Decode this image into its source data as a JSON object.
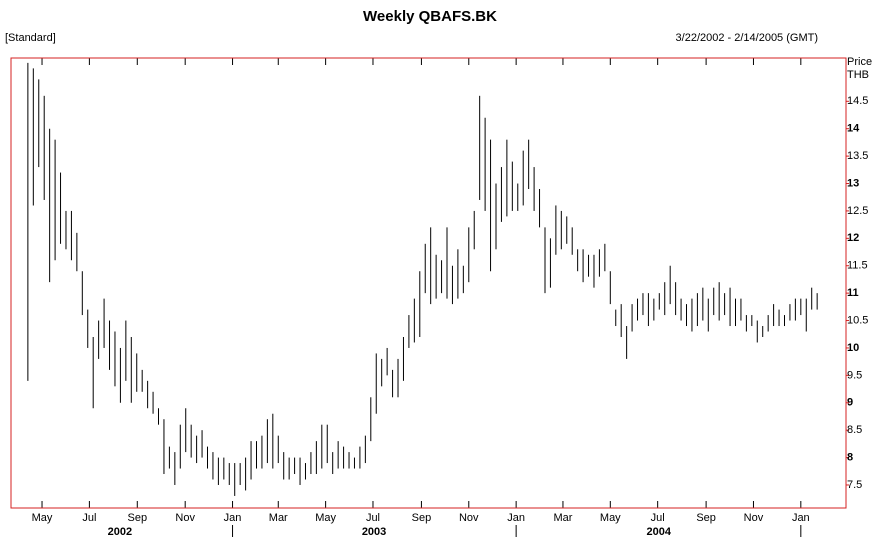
{
  "chart_data": {
    "type": "ohlc",
    "title": "Weekly QBAFS.BK",
    "subtitle": "[Standard]",
    "date_range": "3/22/2002 - 2/14/2005 (GMT)",
    "y_axis_label": "Price",
    "y_axis_unit": "THB",
    "color": "#000000",
    "frame_color": "#d42020",
    "xlim": [
      -0.1,
      153.3
    ],
    "ylim": [
      7.08,
      15.29
    ],
    "yticks": [
      7.5,
      8,
      8.5,
      9,
      9.5,
      10,
      10.5,
      11,
      11.5,
      12,
      12.5,
      13,
      13.5,
      14,
      14.5
    ],
    "xticks": [
      {
        "value": 5.6,
        "label": "May"
      },
      {
        "value": 14.3,
        "label": "Jul"
      },
      {
        "value": 23.1,
        "label": "Sep"
      },
      {
        "value": 31.9,
        "label": "Nov"
      },
      {
        "value": 40.6,
        "label": "Jan"
      },
      {
        "value": 49.0,
        "label": "Mar"
      },
      {
        "value": 57.7,
        "label": "May"
      },
      {
        "value": 66.4,
        "label": "Jul"
      },
      {
        "value": 75.3,
        "label": "Sep"
      },
      {
        "value": 84.0,
        "label": "Nov"
      },
      {
        "value": 92.7,
        "label": "Jan"
      },
      {
        "value": 101.3,
        "label": "Mar"
      },
      {
        "value": 110.0,
        "label": "May"
      },
      {
        "value": 118.7,
        "label": "Jul"
      },
      {
        "value": 127.6,
        "label": "Sep"
      },
      {
        "value": 136.3,
        "label": "Nov"
      },
      {
        "value": 145.0,
        "label": "Jan"
      }
    ],
    "year_labels": [
      {
        "value": 19.9,
        "label": "2002"
      },
      {
        "value": 66.6,
        "label": "2003"
      },
      {
        "value": 118.9,
        "label": "2004"
      }
    ],
    "year_ticks": [
      40.6,
      92.7,
      145.0
    ],
    "x": [
      3,
      4,
      5,
      6,
      7,
      8,
      9,
      10,
      11,
      12,
      13,
      14,
      15,
      16,
      17,
      18,
      19,
      20,
      21,
      22,
      23,
      24,
      25,
      26,
      27,
      28,
      29,
      30,
      31,
      32,
      33,
      34,
      35,
      36,
      37,
      38,
      39,
      40,
      41,
      42,
      43,
      44,
      45,
      46,
      47,
      48,
      49,
      50,
      51,
      52,
      53,
      54,
      55,
      56,
      57,
      58,
      59,
      60,
      61,
      62,
      63,
      64,
      65,
      66,
      67,
      68,
      69,
      70,
      71,
      72,
      73,
      74,
      75,
      76,
      77,
      78,
      79,
      80,
      81,
      82,
      83,
      84,
      85,
      86,
      87,
      88,
      89,
      90,
      91,
      92,
      93,
      94,
      95,
      96,
      97,
      98,
      99,
      100,
      101,
      102,
      103,
      104,
      105,
      106,
      107,
      108,
      109,
      110,
      111,
      112,
      113,
      114,
      115,
      116,
      117,
      118,
      119,
      120,
      121,
      122,
      123,
      124,
      125,
      126,
      127,
      128,
      129,
      130,
      131,
      132,
      133,
      134,
      135,
      136,
      137,
      138,
      139,
      140,
      141,
      142,
      143,
      144,
      145,
      146,
      147,
      148
    ],
    "high": [
      15.2,
      15.1,
      14.9,
      14.6,
      14.0,
      13.8,
      13.2,
      12.5,
      12.5,
      12.1,
      11.4,
      10.7,
      10.2,
      10.5,
      10.9,
      10.5,
      10.3,
      10.0,
      10.5,
      10.2,
      9.9,
      9.6,
      9.4,
      9.2,
      8.9,
      8.7,
      8.2,
      8.1,
      8.6,
      8.9,
      8.6,
      8.4,
      8.5,
      8.2,
      8.1,
      8.0,
      8.0,
      7.9,
      7.9,
      7.9,
      8.0,
      8.3,
      8.3,
      8.4,
      8.7,
      8.8,
      8.4,
      8.1,
      8.0,
      8.0,
      8.0,
      7.9,
      8.1,
      8.3,
      8.6,
      8.6,
      8.1,
      8.3,
      8.2,
      8.1,
      8.0,
      8.2,
      8.4,
      9.1,
      9.9,
      9.8,
      10.0,
      9.6,
      9.8,
      10.2,
      10.6,
      10.9,
      11.4,
      11.9,
      12.2,
      11.7,
      11.6,
      12.2,
      11.5,
      11.8,
      11.5,
      12.2,
      12.5,
      14.6,
      14.2,
      13.8,
      13.0,
      13.3,
      13.8,
      13.4,
      13.0,
      13.6,
      13.8,
      13.3,
      12.9,
      12.2,
      12.0,
      12.6,
      12.5,
      12.4,
      12.2,
      11.8,
      11.8,
      11.7,
      11.7,
      11.8,
      11.9,
      11.4,
      10.7,
      10.8,
      10.4,
      10.8,
      10.9,
      11.0,
      11.0,
      10.9,
      11.0,
      11.2,
      11.5,
      11.2,
      10.9,
      10.8,
      10.9,
      11.0,
      11.1,
      10.9,
      11.1,
      11.2,
      11.0,
      11.1,
      10.9,
      10.9,
      10.6,
      10.6,
      10.5,
      10.4,
      10.6,
      10.8,
      10.7,
      10.6,
      10.8,
      10.9,
      10.9,
      10.9,
      11.1,
      11.0
    ],
    "low": [
      9.4,
      12.6,
      13.3,
      12.7,
      11.2,
      11.6,
      11.9,
      11.8,
      11.6,
      11.4,
      10.6,
      10.0,
      8.9,
      9.8,
      10.0,
      9.6,
      9.3,
      9.0,
      9.4,
      9.0,
      9.2,
      9.2,
      8.9,
      8.8,
      8.6,
      7.7,
      7.8,
      7.5,
      7.8,
      8.1,
      8.0,
      7.9,
      8.0,
      7.8,
      7.6,
      7.5,
      7.6,
      7.5,
      7.3,
      7.5,
      7.4,
      7.6,
      7.8,
      7.8,
      7.9,
      7.8,
      7.9,
      7.6,
      7.6,
      7.7,
      7.5,
      7.6,
      7.7,
      7.7,
      7.8,
      7.9,
      7.7,
      7.8,
      7.8,
      7.8,
      7.8,
      7.8,
      7.9,
      8.3,
      8.8,
      9.3,
      9.5,
      9.1,
      9.1,
      9.4,
      10.0,
      10.1,
      10.2,
      11.0,
      10.8,
      10.9,
      11.0,
      10.9,
      10.8,
      10.9,
      11.0,
      11.2,
      11.8,
      12.7,
      12.5,
      11.4,
      11.8,
      12.3,
      12.4,
      12.5,
      12.5,
      12.6,
      12.9,
      12.5,
      12.2,
      11.0,
      11.1,
      11.7,
      11.8,
      11.9,
      11.7,
      11.4,
      11.2,
      11.3,
      11.1,
      11.3,
      11.4,
      10.8,
      10.4,
      10.2,
      9.8,
      10.3,
      10.5,
      10.6,
      10.4,
      10.5,
      10.7,
      10.6,
      10.8,
      10.6,
      10.5,
      10.4,
      10.3,
      10.4,
      10.5,
      10.3,
      10.6,
      10.5,
      10.6,
      10.4,
      10.4,
      10.5,
      10.3,
      10.4,
      10.1,
      10.2,
      10.3,
      10.4,
      10.4,
      10.4,
      10.5,
      10.5,
      10.6,
      10.3,
      10.7,
      10.7
    ]
  }
}
